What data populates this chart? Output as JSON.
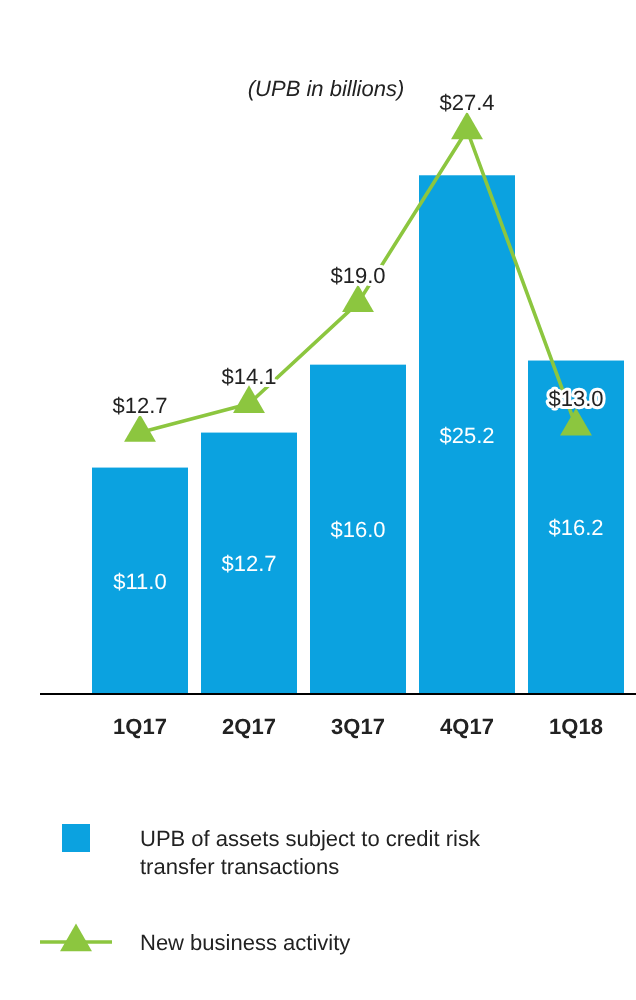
{
  "chart_data": {
    "type": "bar",
    "title": "(UPB in billions)",
    "categories": [
      "1Q17",
      "2Q17",
      "3Q17",
      "4Q17",
      "1Q18"
    ],
    "series": [
      {
        "name": "UPB of assets subject to credit risk transfer transactions",
        "color": "#0ba2e0",
        "values": [
          11.0,
          12.7,
          16.0,
          25.2,
          16.2
        ],
        "value_labels": [
          "$11.0",
          "$12.7",
          "$16.0",
          "$25.2",
          "$16.2"
        ]
      },
      {
        "type": "line",
        "name": "New business activity",
        "color": "#8cc63f",
        "values": [
          12.7,
          14.1,
          19.0,
          27.4,
          13.0
        ],
        "value_labels": [
          "$12.7",
          "$14.1",
          "$19.0",
          "$27.4",
          "$13.0"
        ],
        "marker": "triangle"
      }
    ],
    "legend": "bottom"
  }
}
